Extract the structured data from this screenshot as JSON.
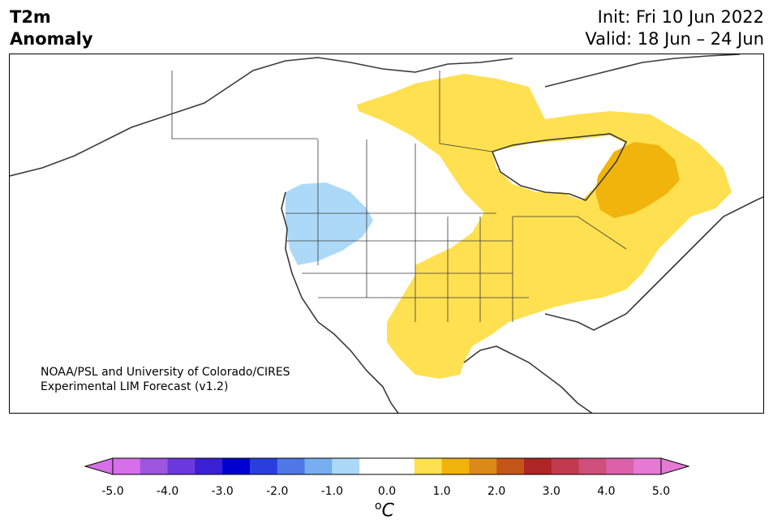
{
  "title": {
    "line1": "T2m",
    "line2": "Anomaly"
  },
  "dates": {
    "init": "Init: Fri 10 Jun 2022",
    "valid": "Valid: 18 Jun – 24 Jun"
  },
  "credit": {
    "line1": "NOAA/PSL and University of Colorado/CIRES",
    "line2": "Experimental LIM Forecast (v1.2)"
  },
  "colorbar": {
    "ticks": [
      "-5.0",
      "-4.0",
      "-3.0",
      "-2.0",
      "-1.0",
      "0.0",
      "1.0",
      "2.0",
      "3.0",
      "4.0",
      "5.0"
    ],
    "unit_base": "C",
    "unit_sup": "o",
    "colors": [
      "#d66fe8",
      "#9d55e0",
      "#6a38dc",
      "#3a1fd4",
      "#0000d0",
      "#2a3ede",
      "#4f78e6",
      "#77aeef",
      "#add9f8",
      "#ffffff",
      "#ffffff",
      "#ffe050",
      "#f1b40c",
      "#dc8a17",
      "#c45519",
      "#ad2524",
      "#c23a50",
      "#cf4f7b",
      "#dc61ab",
      "#e579d4"
    ]
  },
  "anomaly_colors": {
    "warm1": "#ffe050",
    "warm2": "#f1b40c",
    "cool1": "#add9f8"
  }
}
